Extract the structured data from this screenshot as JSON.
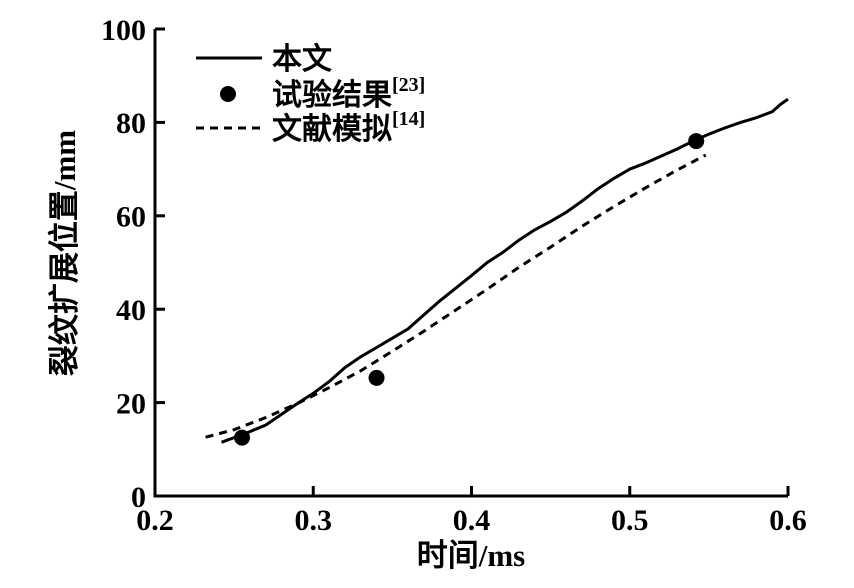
{
  "chart_data": {
    "type": "line",
    "title": "",
    "xlabel": "时间/ms",
    "ylabel": "裂纹扩展位置/mm",
    "xlim": [
      0.2,
      0.6
    ],
    "ylim": [
      0,
      100
    ],
    "xticks": [
      "0.2",
      "0.3",
      "0.4",
      "0.5",
      "0.6"
    ],
    "yticks": [
      "0",
      "20",
      "40",
      "60",
      "80",
      "100"
    ],
    "grid": false,
    "legend_position": "upper-left-inside",
    "axis_color": "#000000",
    "background_color": "#ffffff",
    "series": [
      {
        "name": "本文",
        "ref": "",
        "kind": "line",
        "style": "solid",
        "color": "#000000",
        "points": [
          [
            0.242,
            11.5
          ],
          [
            0.25,
            12.5
          ],
          [
            0.26,
            13.8
          ],
          [
            0.27,
            15.2
          ],
          [
            0.28,
            17.5
          ],
          [
            0.29,
            19.8
          ],
          [
            0.3,
            22.0
          ],
          [
            0.31,
            24.5
          ],
          [
            0.32,
            27.5
          ],
          [
            0.33,
            29.8
          ],
          [
            0.34,
            31.8
          ],
          [
            0.35,
            33.8
          ],
          [
            0.36,
            35.8
          ],
          [
            0.37,
            38.8
          ],
          [
            0.38,
            41.8
          ],
          [
            0.39,
            44.5
          ],
          [
            0.4,
            47.2
          ],
          [
            0.41,
            50.0
          ],
          [
            0.42,
            52.2
          ],
          [
            0.43,
            54.8
          ],
          [
            0.44,
            57.0
          ],
          [
            0.45,
            58.8
          ],
          [
            0.46,
            60.8
          ],
          [
            0.47,
            63.2
          ],
          [
            0.48,
            65.8
          ],
          [
            0.49,
            68.0
          ],
          [
            0.5,
            70.0
          ],
          [
            0.51,
            71.3
          ],
          [
            0.52,
            72.8
          ],
          [
            0.53,
            74.3
          ],
          [
            0.54,
            76.0
          ],
          [
            0.55,
            77.5
          ],
          [
            0.56,
            78.8
          ],
          [
            0.57,
            80.0
          ],
          [
            0.58,
            81.0
          ],
          [
            0.59,
            82.3
          ],
          [
            0.595,
            83.8
          ],
          [
            0.6,
            85.0
          ]
        ]
      },
      {
        "name": "试验结果",
        "ref": "[23]",
        "kind": "scatter",
        "marker": "circle",
        "color": "#000000",
        "points": [
          [
            0.255,
            12.5
          ],
          [
            0.34,
            25.3
          ],
          [
            0.542,
            76.0
          ]
        ]
      },
      {
        "name": "文献模拟",
        "ref": "[14]",
        "kind": "line",
        "style": "dashed",
        "color": "#000000",
        "points": [
          [
            0.232,
            12.6
          ],
          [
            0.25,
            14.2
          ],
          [
            0.27,
            16.8
          ],
          [
            0.29,
            19.8
          ],
          [
            0.31,
            23.2
          ],
          [
            0.33,
            26.8
          ],
          [
            0.35,
            31.0
          ],
          [
            0.37,
            35.3
          ],
          [
            0.39,
            39.8
          ],
          [
            0.41,
            44.3
          ],
          [
            0.43,
            49.0
          ],
          [
            0.45,
            53.3
          ],
          [
            0.47,
            57.8
          ],
          [
            0.49,
            62.0
          ],
          [
            0.51,
            66.0
          ],
          [
            0.53,
            69.8
          ],
          [
            0.548,
            73.0
          ]
        ]
      }
    ]
  }
}
